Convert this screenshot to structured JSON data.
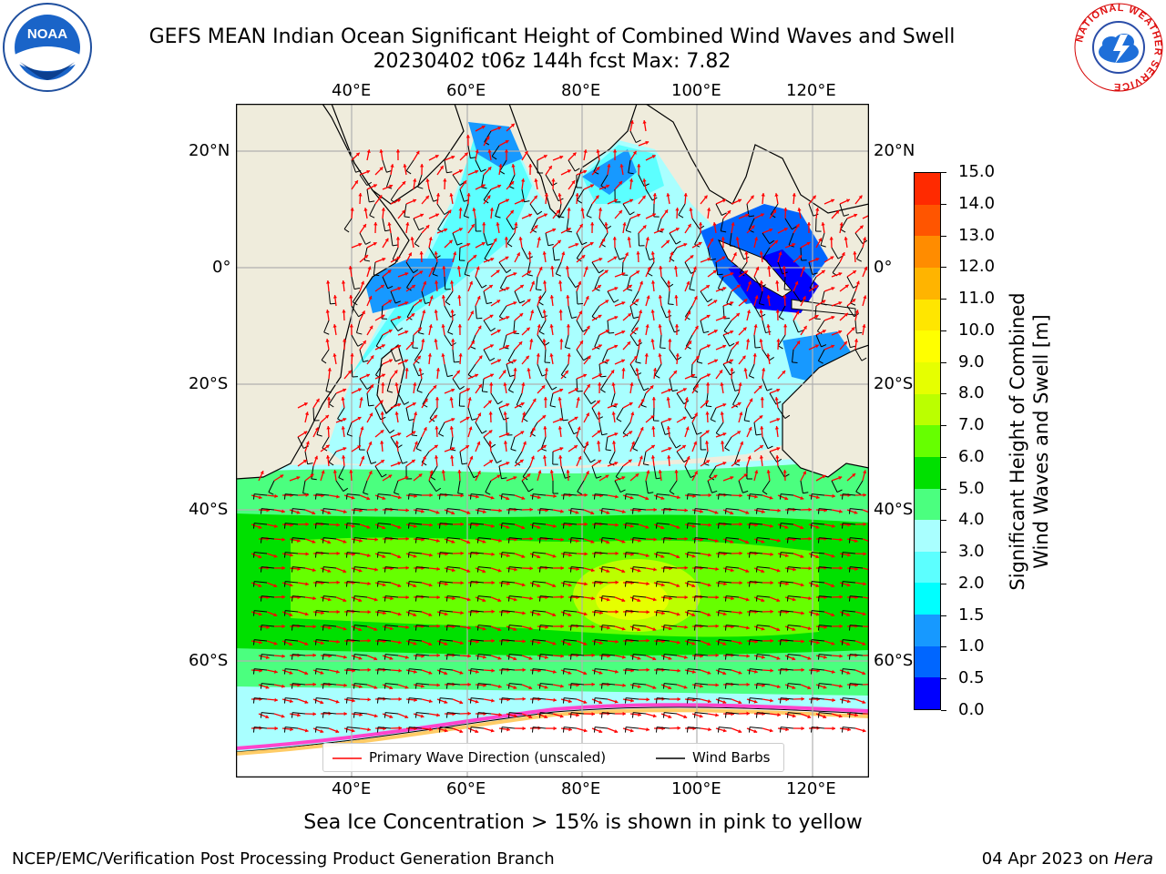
{
  "header": {
    "title_line1": "GEFS MEAN Indian Ocean Significant Height of Combined Wind Waves and Swell",
    "title_line2": "20230402 t06z 144h fcst   Max: 7.82"
  },
  "logos": {
    "noaa_text": "NOAA",
    "nws_ring_text": "NATIONAL WEATHER SERVICE"
  },
  "map": {
    "lon_labels": [
      "40°E",
      "60°E",
      "80°E",
      "100°E",
      "120°E"
    ],
    "lat_labels_left": [
      "20°N",
      "0°",
      "20°S",
      "40°S",
      "60°S"
    ],
    "lat_labels_right": [
      "20°N",
      "0°",
      "20°S",
      "40°S",
      "60°S"
    ],
    "legend": {
      "wave_direction": "Primary Wave Direction (unscaled)",
      "wind_barbs": "Wind Barbs"
    },
    "colors": {
      "land": "#efecdc",
      "wave_arrow": "#ff0000",
      "barb": "#000000"
    }
  },
  "colorbar": {
    "label_line1": "Significant Height of Combined",
    "label_line2": "Wind Waves and Swell [m]",
    "ticks": [
      "0.0",
      "0.5",
      "1.0",
      "1.5",
      "2.0",
      "3.0",
      "4.0",
      "5.0",
      "6.0",
      "7.0",
      "8.0",
      "9.0",
      "10.0",
      "11.0",
      "12.0",
      "13.0",
      "14.0",
      "15.0"
    ],
    "colors": [
      "#0000ff",
      "#0066ff",
      "#1799ff",
      "#00ffff",
      "#5cffff",
      "#a9ffff",
      "#4bff7f",
      "#00e000",
      "#66ff00",
      "#bbff00",
      "#e6ff00",
      "#ffff00",
      "#ffe600",
      "#ffb400",
      "#ff8c00",
      "#ff5500",
      "#ff2a00",
      "#ff0000"
    ]
  },
  "footer": {
    "note": "Sea Ice Concentration > 15% is shown in pink to yellow",
    "left": "NCEP/EMC/Verification Post Processing Product Generation Branch",
    "right_date": "04 Apr 2023 on ",
    "right_host": "Hera"
  }
}
